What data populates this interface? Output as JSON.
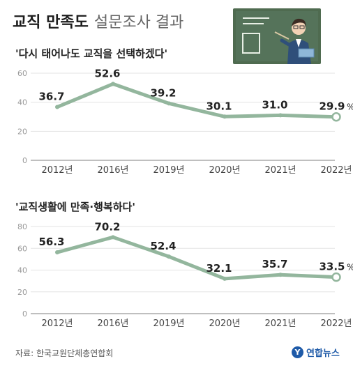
{
  "header": {
    "title_bold": "교직 만족도",
    "title_light": "설문조사 결과"
  },
  "chart_data": [
    {
      "type": "line",
      "title": "'다시 태어나도 교직을 선택하겠다'",
      "categories": [
        "2012년",
        "2016년",
        "2019년",
        "2020년",
        "2021년",
        "2022년"
      ],
      "values": [
        36.7,
        52.6,
        39.2,
        30.1,
        31.0,
        29.9
      ],
      "value_labels": [
        "36.7",
        "52.6",
        "39.2",
        "30.1",
        "31.0",
        "29.9"
      ],
      "unit": "%",
      "yticks": [
        "0",
        "20",
        "40",
        "60"
      ],
      "ylim": [
        0,
        60
      ],
      "grid": true,
      "line_color": "#93b69d",
      "axis_color": "#bfbfbf"
    },
    {
      "type": "line",
      "title": "'교직생활에 만족·행복하다'",
      "categories": [
        "2012년",
        "2016년",
        "2019년",
        "2020년",
        "2021년",
        "2022년"
      ],
      "values": [
        56.3,
        70.2,
        52.4,
        32.1,
        35.7,
        33.5
      ],
      "value_labels": [
        "56.3",
        "70.2",
        "52.4",
        "32.1",
        "35.7",
        "33.5"
      ],
      "unit": "%",
      "yticks": [
        "0",
        "20",
        "40",
        "60",
        "80"
      ],
      "ylim": [
        0,
        80
      ],
      "grid": true,
      "line_color": "#93b69d",
      "axis_color": "#bfbfbf"
    }
  ],
  "footer": {
    "source": "자료: 한국교원단체총연합회",
    "logo_text": "연합뉴스",
    "logo_mark": "Y"
  },
  "colors": {
    "accent": "#93b69d",
    "board": "#4f6b50",
    "logo": "#1e5aa8"
  }
}
